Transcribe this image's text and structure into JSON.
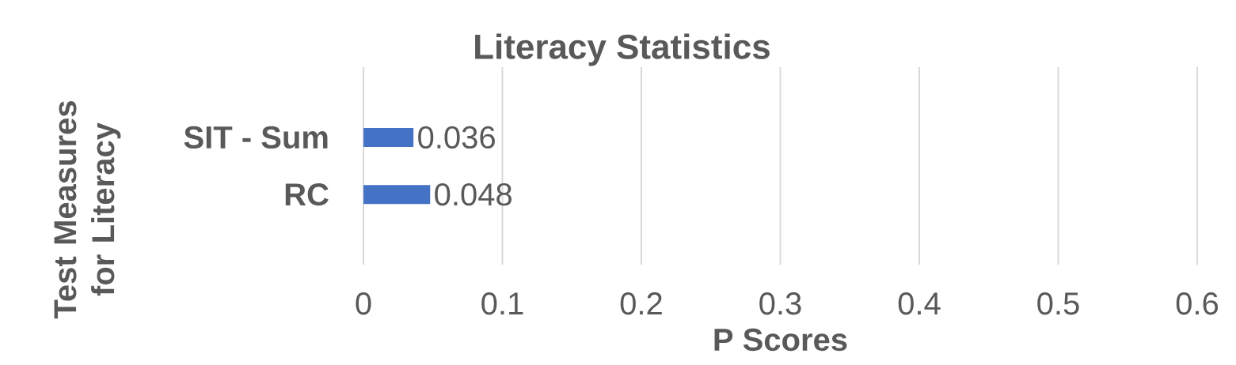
{
  "chart_data": {
    "type": "bar",
    "orientation": "horizontal",
    "title": "Literacy Statistics",
    "xlabel": "P Scores",
    "ylabel": "Test Measures for Literacy",
    "categories": [
      "SIT - Sum",
      "RC"
    ],
    "values": [
      0.036,
      0.048
    ],
    "color": "#4472c4",
    "xlim": [
      0,
      0.6
    ],
    "xticks": [
      0,
      0.1,
      0.2,
      0.3,
      0.4,
      0.5,
      0.6
    ],
    "grid": "x",
    "data_labels": true
  }
}
